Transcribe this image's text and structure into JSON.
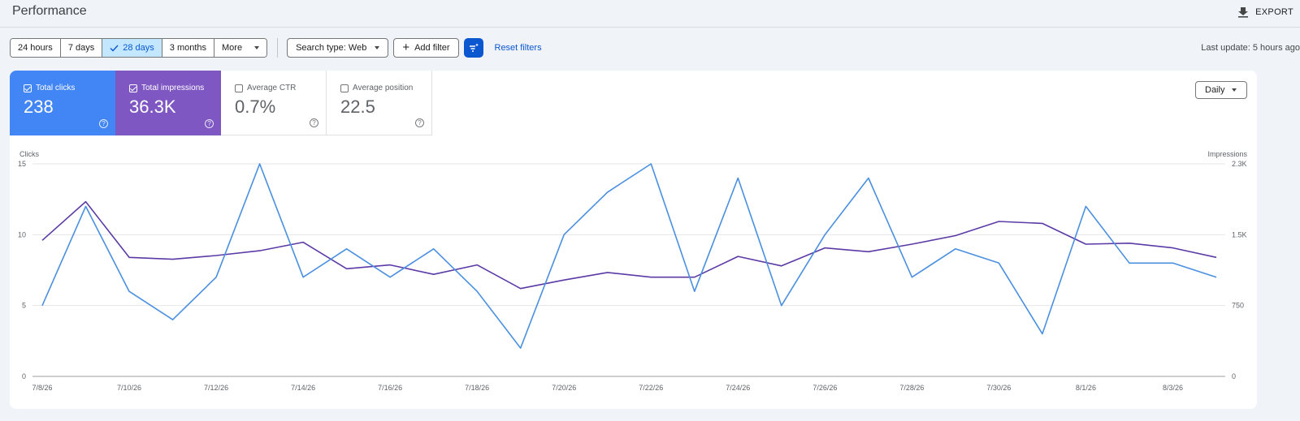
{
  "header": {
    "title": "Performance",
    "export_label": "EXPORT"
  },
  "filters": {
    "date_ranges": [
      {
        "label": "24 hours",
        "active": false
      },
      {
        "label": "7 days",
        "active": false
      },
      {
        "label": "28 days",
        "active": true
      },
      {
        "label": "3 months",
        "active": false
      },
      {
        "label": "More",
        "active": false
      }
    ],
    "search_type": "Search type: Web",
    "add_filter": "Add filter",
    "reset": "Reset filters",
    "last_update": "Last update: 5 hours ago"
  },
  "metrics": {
    "clicks": {
      "label": "Total clicks",
      "value": "238",
      "selected": true
    },
    "impressions": {
      "label": "Total impressions",
      "value": "36.3K",
      "selected": true
    },
    "ctr": {
      "label": "Average CTR",
      "value": "0.7%",
      "selected": false
    },
    "position": {
      "label": "Average position",
      "value": "22.5",
      "selected": false
    }
  },
  "granularity": "Daily",
  "colors": {
    "clicks": "#4a8fe0",
    "impressions": "#5b3aa6",
    "accent": "#0b57d0"
  },
  "chart_data": {
    "type": "line",
    "left_axis": {
      "label": "Clicks",
      "ticks": [
        "15",
        "10",
        "5",
        "0"
      ],
      "range": [
        0,
        15
      ]
    },
    "right_axis": {
      "label": "Impressions",
      "ticks": [
        "2.3K",
        "1.5K",
        "750",
        "0"
      ],
      "range": [
        0,
        2250
      ]
    },
    "x_tick_labels": [
      "7/8/26",
      "7/10/26",
      "7/12/26",
      "7/14/26",
      "7/16/26",
      "7/18/26",
      "7/20/26",
      "7/22/26",
      "7/24/26",
      "7/26/26",
      "7/28/26",
      "7/30/26",
      "8/1/26",
      "8/3/26"
    ],
    "x": [
      "7/8/26",
      "7/9/26",
      "7/10/26",
      "7/11/26",
      "7/12/26",
      "7/13/26",
      "7/14/26",
      "7/15/26",
      "7/16/26",
      "7/17/26",
      "7/18/26",
      "7/19/26",
      "7/20/26",
      "7/21/26",
      "7/22/26",
      "7/23/26",
      "7/24/26",
      "7/25/26",
      "7/26/26",
      "7/27/26",
      "7/28/26",
      "7/29/26",
      "7/30/26",
      "7/31/26",
      "8/1/26",
      "8/2/26",
      "8/3/26",
      "8/4/26"
    ],
    "series": [
      {
        "name": "Clicks",
        "axis": "left",
        "values": [
          5,
          12,
          6,
          4,
          7,
          15,
          7,
          9,
          7,
          9,
          6,
          2,
          10,
          13,
          15,
          6,
          14,
          5,
          10,
          14,
          7,
          9,
          8,
          3,
          12,
          8,
          8,
          7
        ]
      },
      {
        "name": "Impressions",
        "axis": "right",
        "values": [
          1440,
          1850,
          1260,
          1240,
          1280,
          1330,
          1420,
          1140,
          1180,
          1080,
          1180,
          930,
          1020,
          1100,
          1050,
          1050,
          1270,
          1170,
          1360,
          1320,
          1400,
          1490,
          1640,
          1620,
          1400,
          1410,
          1360,
          1260
        ]
      }
    ],
    "grid": true
  }
}
